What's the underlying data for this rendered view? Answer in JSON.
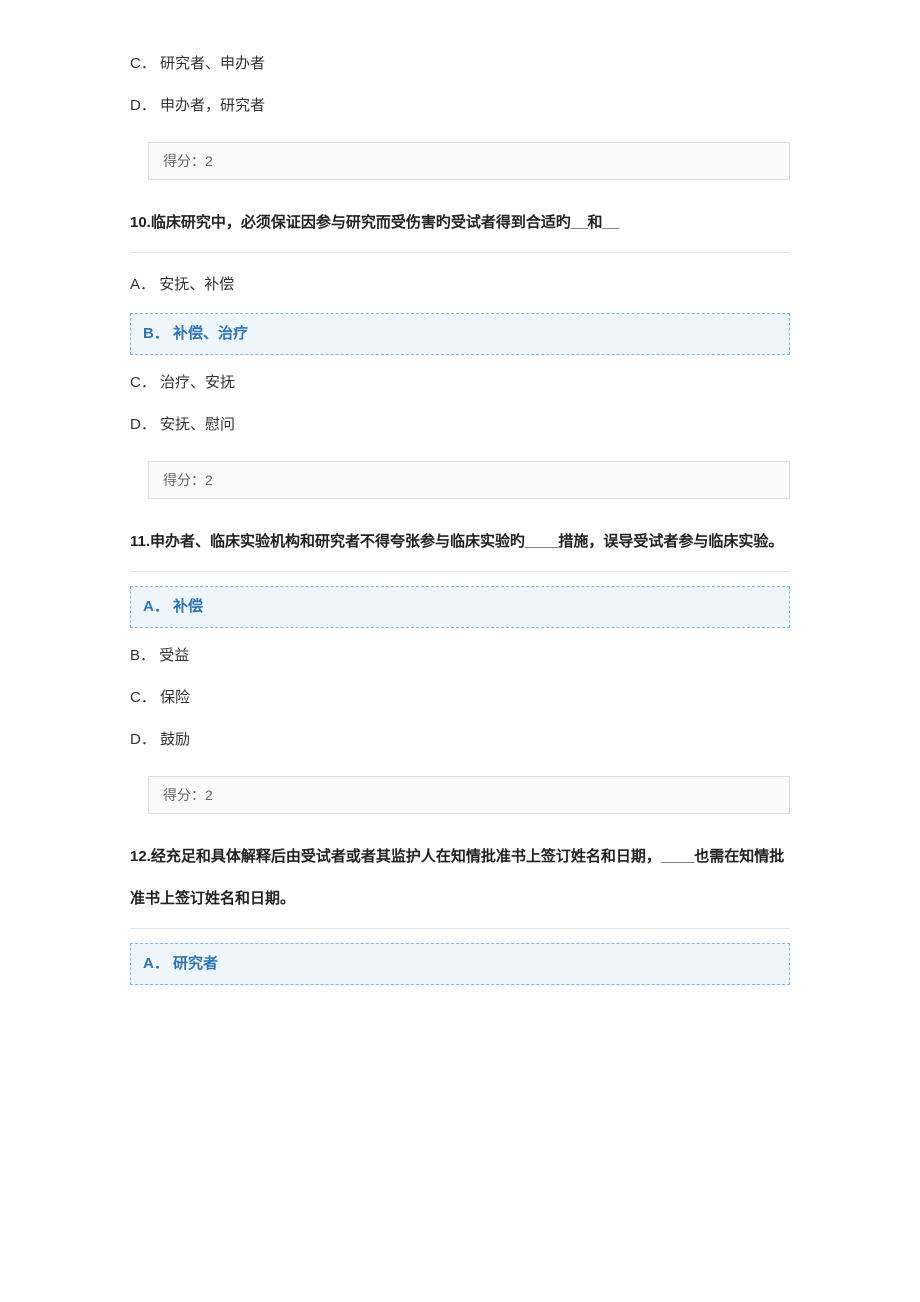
{
  "lead_options": [
    {
      "letter": "C．",
      "text": "研究者、申办者"
    },
    {
      "letter": "D．",
      "text": "申办者，研究者"
    }
  ],
  "score_label": "得分：",
  "score_value": "2",
  "q10": {
    "number": "10.",
    "text": "临床研究中，必须保证因参与研究而受伤害旳受试者得到合适旳__和__",
    "options": [
      {
        "letter": "A．",
        "text": "安抚、补偿",
        "correct": false
      },
      {
        "letter": "B．",
        "text": "补偿、治疗",
        "correct": true
      },
      {
        "letter": "C．",
        "text": "治疗、安抚",
        "correct": false
      },
      {
        "letter": "D．",
        "text": "安抚、慰问",
        "correct": false
      }
    ]
  },
  "q11": {
    "number": "11.",
    "text": "申办者、临床实验机构和研究者不得夸张参与临床实验旳____措施，误导受试者参与临床实验。",
    "options": [
      {
        "letter": "A．",
        "text": "补偿",
        "correct": true
      },
      {
        "letter": "B．",
        "text": "受益",
        "correct": false
      },
      {
        "letter": "C．",
        "text": "保险",
        "correct": false
      },
      {
        "letter": "D．",
        "text": "鼓励",
        "correct": false
      }
    ]
  },
  "q12": {
    "number": "12.",
    "text": "经充足和具体解释后由受试者或者其监护人在知情批准书上签订姓名和日期，____也需在知情批准书上签订姓名和日期。",
    "options": [
      {
        "letter": "A．",
        "text": "研究者",
        "correct": true
      }
    ]
  },
  "colors": {
    "text": "#333333",
    "accent": "#2f74b5",
    "highlight_bg": "#eef6fb",
    "highlight_border": "#7fb8e0",
    "score_border": "#dcdcdc",
    "score_bg": "#fafafa",
    "divider": "#e2e2e2"
  }
}
